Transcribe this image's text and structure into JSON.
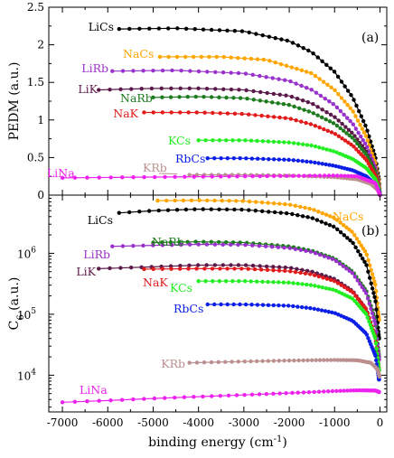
{
  "chart_data": [
    {
      "panel": "(a)",
      "type": "scatter",
      "ylabel": "PEDM (a.u.)",
      "xlabel": "",
      "xlim": [
        -7300,
        150
      ],
      "ylim": [
        0,
        2.5
      ],
      "yscale": "linear",
      "y_ticks": [
        "0",
        "0.5",
        "1",
        "1.5",
        "2",
        "2.5"
      ],
      "series": [
        {
          "name": "LiCs",
          "color": "#000000",
          "x": [
            -5750,
            -4500,
            -3000,
            -2000,
            -1500,
            -1000,
            -600,
            -300,
            -100,
            -20,
            0
          ],
          "y": [
            2.21,
            2.22,
            2.18,
            2.05,
            1.9,
            1.64,
            1.3,
            0.9,
            0.5,
            0.2,
            0.0
          ]
        },
        {
          "name": "NaCs",
          "color": "#ffa500",
          "x": [
            -4850,
            -3500,
            -2500,
            -1500,
            -1000,
            -600,
            -300,
            -100,
            -20,
            0
          ],
          "y": [
            1.84,
            1.84,
            1.8,
            1.62,
            1.4,
            1.12,
            0.78,
            0.42,
            0.15,
            0.0
          ]
        },
        {
          "name": "LiRb",
          "color": "#9932cc",
          "x": [
            -5900,
            -4500,
            -3000,
            -2000,
            -1500,
            -1000,
            -600,
            -300,
            -100,
            -20,
            0
          ],
          "y": [
            1.65,
            1.66,
            1.62,
            1.52,
            1.4,
            1.2,
            0.95,
            0.66,
            0.36,
            0.12,
            0.0
          ]
        },
        {
          "name": "LiK",
          "color": "#5c1a4a",
          "x": [
            -6200,
            -5000,
            -4000,
            -3000,
            -2000,
            -1500,
            -1000,
            -600,
            -300,
            -100,
            -20,
            0
          ],
          "y": [
            1.4,
            1.42,
            1.42,
            1.4,
            1.32,
            1.22,
            1.04,
            0.82,
            0.58,
            0.31,
            0.1,
            0.0
          ]
        },
        {
          "name": "NaRb",
          "color": "#1e7b1e",
          "x": [
            -5000,
            -4000,
            -3000,
            -2000,
            -1500,
            -1000,
            -600,
            -300,
            -100,
            -20,
            0
          ],
          "y": [
            1.3,
            1.31,
            1.29,
            1.2,
            1.1,
            0.95,
            0.76,
            0.54,
            0.3,
            0.1,
            0.0
          ]
        },
        {
          "name": "NaK",
          "color": "#e31a1a",
          "x": [
            -5200,
            -4000,
            -3000,
            -2000,
            -1500,
            -1000,
            -600,
            -300,
            -100,
            -20,
            0
          ],
          "y": [
            1.1,
            1.1,
            1.08,
            1.02,
            0.94,
            0.82,
            0.66,
            0.47,
            0.26,
            0.09,
            0.0
          ]
        },
        {
          "name": "KCs",
          "color": "#22ee22",
          "x": [
            -4000,
            -3000,
            -2000,
            -1500,
            -1000,
            -600,
            -300,
            -100,
            -20,
            0
          ],
          "y": [
            0.73,
            0.73,
            0.7,
            0.66,
            0.58,
            0.48,
            0.36,
            0.21,
            0.07,
            0.0
          ]
        },
        {
          "name": "RbCs",
          "color": "#0a1ee6",
          "x": [
            -3800,
            -3000,
            -2000,
            -1500,
            -1000,
            -600,
            -300,
            -100,
            -20,
            0
          ],
          "y": [
            0.49,
            0.49,
            0.47,
            0.44,
            0.39,
            0.33,
            0.25,
            0.14,
            0.05,
            0.0
          ]
        },
        {
          "name": "KRb",
          "color": "#bc8f8f",
          "x": [
            -4200,
            -3000,
            -2000,
            -1000,
            -500,
            -200,
            -50,
            0
          ],
          "y": [
            0.27,
            0.27,
            0.26,
            0.24,
            0.21,
            0.15,
            0.07,
            0.0
          ]
        },
        {
          "name": "LiNa",
          "color": "#ee22ee",
          "x": [
            -7000,
            -6000,
            -5000,
            -4000,
            -3000,
            -2000,
            -1000,
            -500,
            -100,
            0
          ],
          "y": [
            0.23,
            0.235,
            0.24,
            0.245,
            0.25,
            0.255,
            0.26,
            0.25,
            0.16,
            0.0
          ]
        }
      ]
    },
    {
      "panel": "(b)",
      "type": "scatter",
      "ylabel": "C",
      "ylabel_subscript": "6",
      "ylabel_suffix": " (a.u.)",
      "xlabel": "binding energy (cm",
      "xlabel_superscript": "-1",
      "xlabel_suffix": ")",
      "xlim": [
        -7300,
        150
      ],
      "ylim": [
        2500,
        9000000
      ],
      "yscale": "log",
      "x_ticks": [
        "-7000",
        "-6000",
        "-5000",
        "-4000",
        "-3000",
        "-2000",
        "-1000",
        "0"
      ],
      "y_tick_values": [
        10000,
        100000,
        1000000
      ],
      "y_ticks": [
        "10",
        "10",
        "10"
      ],
      "y_tick_exponents": [
        "4",
        "5",
        "6"
      ],
      "series": [
        {
          "name": "NaCs",
          "color": "#ffa500",
          "x": [
            -4900,
            -4000,
            -3000,
            -2000,
            -1500,
            -1000,
            -600,
            -300,
            -100,
            -20
          ],
          "y": [
            7300000,
            7400000,
            7200000,
            6300000,
            5300000,
            3800000,
            2200000,
            1000000,
            300000,
            80000
          ]
        },
        {
          "name": "LiCs",
          "color": "#000000",
          "x": [
            -5750,
            -5000,
            -4000,
            -3000,
            -2000,
            -1500,
            -1000,
            -600,
            -300,
            -100,
            -20
          ],
          "y": [
            4600000,
            5000000,
            5300000,
            5200000,
            4500000,
            3800000,
            2700000,
            1500000,
            650000,
            170000,
            40000
          ]
        },
        {
          "name": "NaRb",
          "color": "#1e7b1e",
          "x": [
            -5000,
            -4000,
            -3000,
            -2000,
            -1500,
            -1000,
            -600,
            -300,
            -100,
            -20
          ],
          "y": [
            1500000,
            1550000,
            1500000,
            1300000,
            1100000,
            820000,
            500000,
            240000,
            80000,
            20000
          ]
        },
        {
          "name": "LiRb",
          "color": "#9932cc",
          "x": [
            -5900,
            -5000,
            -4000,
            -3000,
            -2000,
            -1500,
            -1000,
            -600,
            -300,
            -100,
            -20
          ],
          "y": [
            1300000,
            1350000,
            1400000,
            1380000,
            1220000,
            1050000,
            780000,
            470000,
            220000,
            70000,
            18000
          ]
        },
        {
          "name": "LiK",
          "color": "#5c1a4a",
          "x": [
            -6200,
            -5000,
            -4000,
            -3000,
            -2000,
            -1500,
            -1000,
            -600,
            -300,
            -100,
            -20
          ],
          "y": [
            560000,
            600000,
            640000,
            640000,
            580000,
            500000,
            380000,
            240000,
            120000,
            42000,
            12000
          ]
        },
        {
          "name": "NaK",
          "color": "#e31a1a",
          "x": [
            -5200,
            -4000,
            -3000,
            -2000,
            -1500,
            -1000,
            -600,
            -300,
            -100,
            -20
          ],
          "y": [
            550000,
            560000,
            560000,
            510000,
            450000,
            350000,
            230000,
            120000,
            42000,
            12000
          ]
        },
        {
          "name": "KCs",
          "color": "#22ee22",
          "x": [
            -4000,
            -3000,
            -2000,
            -1500,
            -1000,
            -600,
            -300,
            -100,
            -20
          ],
          "y": [
            350000,
            350000,
            330000,
            300000,
            250000,
            180000,
            100000,
            40000,
            12000
          ]
        },
        {
          "name": "RbCs",
          "color": "#0a1ee6",
          "x": [
            -3800,
            -3000,
            -2000,
            -1500,
            -1000,
            -600,
            -300,
            -100,
            -20
          ],
          "y": [
            145000,
            145000,
            138000,
            125000,
            105000,
            78000,
            48000,
            21000,
            8500
          ]
        },
        {
          "name": "KRb",
          "color": "#bc8f8f",
          "x": [
            -4200,
            -3000,
            -2000,
            -1000,
            -500,
            -200,
            -50,
            -10
          ],
          "y": [
            16000,
            16800,
            17400,
            17800,
            17600,
            16000,
            12500,
            9500
          ]
        },
        {
          "name": "LiNa",
          "color": "#ee22ee",
          "x": [
            -7000,
            -6000,
            -5000,
            -4000,
            -3000,
            -2000,
            -1000,
            -500,
            -100,
            -20
          ],
          "y": [
            3600,
            3850,
            4150,
            4450,
            4750,
            5100,
            5500,
            5650,
            5600,
            5300
          ]
        }
      ]
    }
  ]
}
